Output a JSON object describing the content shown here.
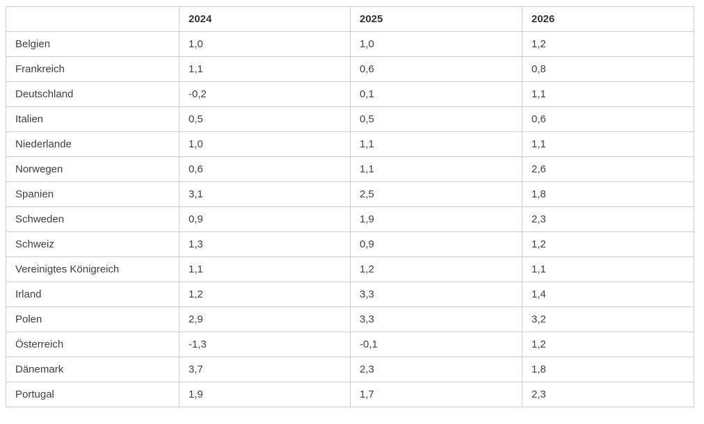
{
  "colors": {
    "border": "#cccccc",
    "header_text": "#333333",
    "body_text": "#3f3f3f",
    "background": "#ffffff"
  },
  "table": {
    "columns": [
      "",
      "2024",
      "2025",
      "2026"
    ],
    "rows": [
      {
        "label": "Belgien",
        "values": [
          "1,0",
          "1,0",
          "1,2"
        ]
      },
      {
        "label": "Frankreich",
        "values": [
          "1,1",
          "0,6",
          "0,8"
        ]
      },
      {
        "label": "Deutschland",
        "values": [
          "-0,2",
          "0,1",
          "1,1"
        ]
      },
      {
        "label": "Italien",
        "values": [
          "0,5",
          "0,5",
          "0,6"
        ]
      },
      {
        "label": "Niederlande",
        "values": [
          "1,0",
          "1,1",
          "1,1"
        ]
      },
      {
        "label": "Norwegen",
        "values": [
          "0,6",
          "1,1",
          "2,6"
        ]
      },
      {
        "label": "Spanien",
        "values": [
          "3,1",
          "2,5",
          "1,8"
        ]
      },
      {
        "label": "Schweden",
        "values": [
          "0,9",
          "1,9",
          "2,3"
        ]
      },
      {
        "label": "Schweiz",
        "values": [
          "1,3",
          "0,9",
          "1,2"
        ]
      },
      {
        "label": "Vereinigtes Königreich",
        "values": [
          "1,1",
          "1,2",
          "1,1"
        ]
      },
      {
        "label": "Irland",
        "values": [
          "1,2",
          "3,3",
          "1,4"
        ]
      },
      {
        "label": "Polen",
        "values": [
          "2,9",
          "3,3",
          "3,2"
        ]
      },
      {
        "label": "Österreich",
        "values": [
          "-1,3",
          "-0,1",
          "1,2"
        ]
      },
      {
        "label": "Dänemark",
        "values": [
          "3,7",
          "2,3",
          "1,8"
        ]
      },
      {
        "label": "Portugal",
        "values": [
          "1,9",
          "1,7",
          "2,3"
        ]
      }
    ]
  },
  "chart_data": {
    "type": "table",
    "title": "",
    "categories": [
      "2024",
      "2025",
      "2026"
    ],
    "series": [
      {
        "name": "Belgien",
        "values": [
          1.0,
          1.0,
          1.2
        ]
      },
      {
        "name": "Frankreich",
        "values": [
          1.1,
          0.6,
          0.8
        ]
      },
      {
        "name": "Deutschland",
        "values": [
          -0.2,
          0.1,
          1.1
        ]
      },
      {
        "name": "Italien",
        "values": [
          0.5,
          0.5,
          0.6
        ]
      },
      {
        "name": "Niederlande",
        "values": [
          1.0,
          1.1,
          1.1
        ]
      },
      {
        "name": "Norwegen",
        "values": [
          0.6,
          1.1,
          2.6
        ]
      },
      {
        "name": "Spanien",
        "values": [
          3.1,
          2.5,
          1.8
        ]
      },
      {
        "name": "Schweden",
        "values": [
          0.9,
          1.9,
          2.3
        ]
      },
      {
        "name": "Schweiz",
        "values": [
          1.3,
          0.9,
          1.2
        ]
      },
      {
        "name": "Vereinigtes Königreich",
        "values": [
          1.1,
          1.2,
          1.1
        ]
      },
      {
        "name": "Irland",
        "values": [
          1.2,
          3.3,
          1.4
        ]
      },
      {
        "name": "Polen",
        "values": [
          2.9,
          3.3,
          3.2
        ]
      },
      {
        "name": "Österreich",
        "values": [
          -1.3,
          -0.1,
          1.2
        ]
      },
      {
        "name": "Dänemark",
        "values": [
          3.7,
          2.3,
          1.8
        ]
      },
      {
        "name": "Portugal",
        "values": [
          1.9,
          1.7,
          2.3
        ]
      }
    ],
    "layout": {
      "grid": true,
      "legend": "none",
      "decimal_separator": ","
    }
  }
}
